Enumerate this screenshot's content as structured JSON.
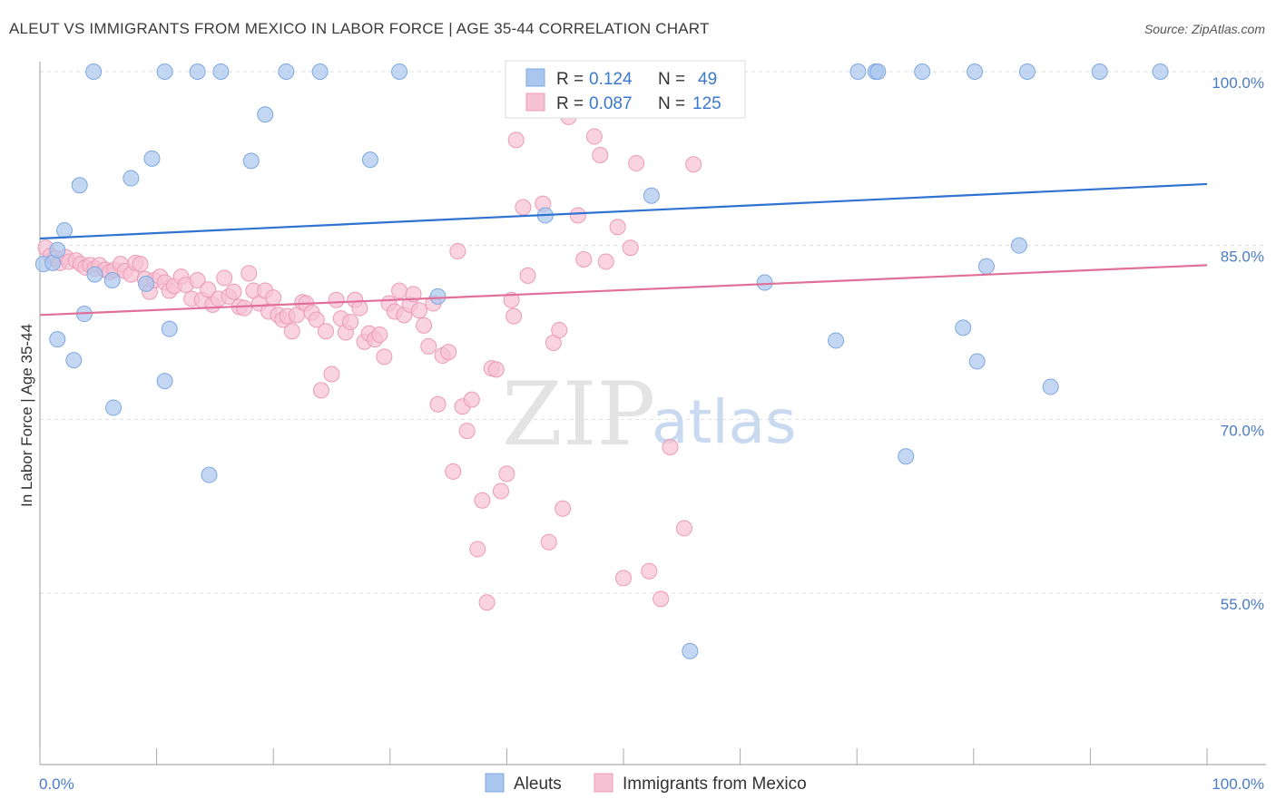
{
  "title": "ALEUT VS IMMIGRANTS FROM MEXICO IN LABOR FORCE | AGE 35-44 CORRELATION CHART",
  "source": "Source: ZipAtlas.com",
  "watermark": {
    "zip": "ZIP",
    "atlas": "atlas"
  },
  "legend_stats": [
    {
      "r_label": "R =",
      "r_value": "0.124",
      "n_label": "N =",
      "n_value": "49"
    },
    {
      "r_label": "R =",
      "r_value": "0.087",
      "n_label": "N =",
      "n_value": "125"
    }
  ],
  "chart_data": {
    "type": "scatter",
    "xlabel": "",
    "ylabel": "In Labor Force | Age 35-44",
    "xlim": [
      0,
      100
    ],
    "ylim": [
      40,
      102
    ],
    "x_tick_labels": [
      "0.0%",
      "100.0%"
    ],
    "y_ticks": [
      55,
      70,
      85,
      100
    ],
    "y_tick_labels": [
      "55.0%",
      "70.0%",
      "85.0%",
      "100.0%"
    ],
    "grid": true,
    "legend_position": "bottom",
    "colors": {
      "aleuts": "#5b8ed6",
      "mexico": "#e0709a"
    },
    "series": [
      {
        "name": "Aleuts",
        "color": "#a9c6ee",
        "stroke": "#7ea8e0",
        "trend": {
          "x": [
            0,
            100
          ],
          "y": [
            85.6,
            90.3
          ],
          "color": "#2f72d0"
        },
        "points": [
          [
            0.3,
            83.4
          ],
          [
            1.1,
            83.5
          ],
          [
            1.5,
            84.6
          ],
          [
            2.1,
            86.3
          ],
          [
            3.4,
            90.2
          ],
          [
            4.6,
            100
          ],
          [
            4.7,
            82.5
          ],
          [
            3.8,
            79.1
          ],
          [
            1.5,
            76.9
          ],
          [
            2.9,
            75.1
          ],
          [
            6.2,
            82.0
          ],
          [
            6.3,
            71.0
          ],
          [
            7.8,
            90.8
          ],
          [
            9.1,
            81.7
          ],
          [
            9.6,
            92.5
          ],
          [
            10.7,
            100
          ],
          [
            10.7,
            73.3
          ],
          [
            11.1,
            77.8
          ],
          [
            13.5,
            100
          ],
          [
            14.5,
            65.2
          ],
          [
            15.5,
            100
          ],
          [
            18.1,
            92.3
          ],
          [
            19.3,
            96.3
          ],
          [
            21.1,
            100
          ],
          [
            24.0,
            100
          ],
          [
            28.3,
            92.4
          ],
          [
            30.8,
            100
          ],
          [
            34.1,
            80.6
          ],
          [
            43.3,
            87.6
          ],
          [
            52.4,
            89.3
          ],
          [
            55.7,
            50.0
          ],
          [
            56.5,
            100
          ],
          [
            58.5,
            100
          ],
          [
            62.1,
            81.8
          ],
          [
            68.2,
            76.8
          ],
          [
            70.1,
            100
          ],
          [
            71.6,
            100
          ],
          [
            71.8,
            100
          ],
          [
            74.2,
            66.8
          ],
          [
            75.6,
            100
          ],
          [
            79.1,
            77.9
          ],
          [
            80.1,
            100
          ],
          [
            80.3,
            75.0
          ],
          [
            81.1,
            83.2
          ],
          [
            83.9,
            85.0
          ],
          [
            84.6,
            100
          ],
          [
            86.6,
            72.8
          ],
          [
            90.8,
            100
          ],
          [
            96.0,
            100
          ]
        ]
      },
      {
        "name": "Immigrants from Mexico",
        "color": "#f6c2d3",
        "stroke": "#ec9ab7",
        "trend": {
          "x": [
            0,
            100
          ],
          "y": [
            79.0,
            83.3
          ],
          "color": "#e0709a"
        },
        "points": [
          [
            0.5,
            84.8
          ],
          [
            0.9,
            84.1
          ],
          [
            1.3,
            83.9
          ],
          [
            1.7,
            83.5
          ],
          [
            2.2,
            84.0
          ],
          [
            2.5,
            83.6
          ],
          [
            3.1,
            83.7
          ],
          [
            3.5,
            83.4
          ],
          [
            3.9,
            83.1
          ],
          [
            4.3,
            83.3
          ],
          [
            4.7,
            83.0
          ],
          [
            5.1,
            83.3
          ],
          [
            5.6,
            82.9
          ],
          [
            6.0,
            82.7
          ],
          [
            6.4,
            82.9
          ],
          [
            6.9,
            83.4
          ],
          [
            7.3,
            82.8
          ],
          [
            7.8,
            82.5
          ],
          [
            8.2,
            83.5
          ],
          [
            8.6,
            83.4
          ],
          [
            9.0,
            82.1
          ],
          [
            9.4,
            81.0
          ],
          [
            9.8,
            82.0
          ],
          [
            10.3,
            82.3
          ],
          [
            10.7,
            81.8
          ],
          [
            11.1,
            81.1
          ],
          [
            11.5,
            81.5
          ],
          [
            12.1,
            82.3
          ],
          [
            12.5,
            81.6
          ],
          [
            13.0,
            80.4
          ],
          [
            13.5,
            82.0
          ],
          [
            13.9,
            80.3
          ],
          [
            14.4,
            81.2
          ],
          [
            14.8,
            79.9
          ],
          [
            15.3,
            80.4
          ],
          [
            15.8,
            82.2
          ],
          [
            16.2,
            80.6
          ],
          [
            16.6,
            81.0
          ],
          [
            17.1,
            79.7
          ],
          [
            17.5,
            79.6
          ],
          [
            17.9,
            82.6
          ],
          [
            18.3,
            81.1
          ],
          [
            18.8,
            80.0
          ],
          [
            19.3,
            81.1
          ],
          [
            19.6,
            79.3
          ],
          [
            20.0,
            80.5
          ],
          [
            20.4,
            79.0
          ],
          [
            20.8,
            78.6
          ],
          [
            21.2,
            78.9
          ],
          [
            21.6,
            77.6
          ],
          [
            22.0,
            79.0
          ],
          [
            22.5,
            80.1
          ],
          [
            22.8,
            80.0
          ],
          [
            23.3,
            79.2
          ],
          [
            23.7,
            78.6
          ],
          [
            24.1,
            72.5
          ],
          [
            24.5,
            77.6
          ],
          [
            25.0,
            73.9
          ],
          [
            25.4,
            80.3
          ],
          [
            25.8,
            78.7
          ],
          [
            26.2,
            77.5
          ],
          [
            26.6,
            78.4
          ],
          [
            27.0,
            80.3
          ],
          [
            27.4,
            79.6
          ],
          [
            27.8,
            76.7
          ],
          [
            28.2,
            77.4
          ],
          [
            28.7,
            76.9
          ],
          [
            29.1,
            77.3
          ],
          [
            29.5,
            75.4
          ],
          [
            29.9,
            80.0
          ],
          [
            30.4,
            79.3
          ],
          [
            30.8,
            81.1
          ],
          [
            31.2,
            79.0
          ],
          [
            31.7,
            79.9
          ],
          [
            32.0,
            80.8
          ],
          [
            32.5,
            79.4
          ],
          [
            32.9,
            78.1
          ],
          [
            33.3,
            76.3
          ],
          [
            33.7,
            80.0
          ],
          [
            34.1,
            71.3
          ],
          [
            34.5,
            75.5
          ],
          [
            35.0,
            75.8
          ],
          [
            35.4,
            65.5
          ],
          [
            35.8,
            84.5
          ],
          [
            36.2,
            71.1
          ],
          [
            36.6,
            69.0
          ],
          [
            37.0,
            71.7
          ],
          [
            37.5,
            58.8
          ],
          [
            37.9,
            63.0
          ],
          [
            38.3,
            54.2
          ],
          [
            38.7,
            74.4
          ],
          [
            39.1,
            74.3
          ],
          [
            39.5,
            63.8
          ],
          [
            40.0,
            65.3
          ],
          [
            40.4,
            80.3
          ],
          [
            40.6,
            78.9
          ],
          [
            40.8,
            94.1
          ],
          [
            41.4,
            88.3
          ],
          [
            41.8,
            82.4
          ],
          [
            42.3,
            100
          ],
          [
            43.1,
            88.6
          ],
          [
            43.6,
            59.4
          ],
          [
            44.0,
            76.6
          ],
          [
            44.5,
            77.7
          ],
          [
            44.8,
            62.3
          ],
          [
            45.3,
            96.1
          ],
          [
            46.1,
            87.6
          ],
          [
            46.6,
            83.8
          ],
          [
            47.0,
            97.0
          ],
          [
            47.5,
            94.4
          ],
          [
            48.0,
            92.8
          ],
          [
            48.5,
            83.6
          ],
          [
            49.1,
            100
          ],
          [
            49.5,
            86.6
          ],
          [
            50.0,
            56.3
          ],
          [
            50.6,
            84.8
          ],
          [
            51.1,
            92.1
          ],
          [
            52.2,
            56.9
          ],
          [
            53.2,
            54.5
          ],
          [
            54.0,
            67.6
          ],
          [
            55.2,
            60.6
          ],
          [
            56.0,
            92.0
          ],
          [
            58.0,
            100
          ]
        ]
      }
    ]
  }
}
